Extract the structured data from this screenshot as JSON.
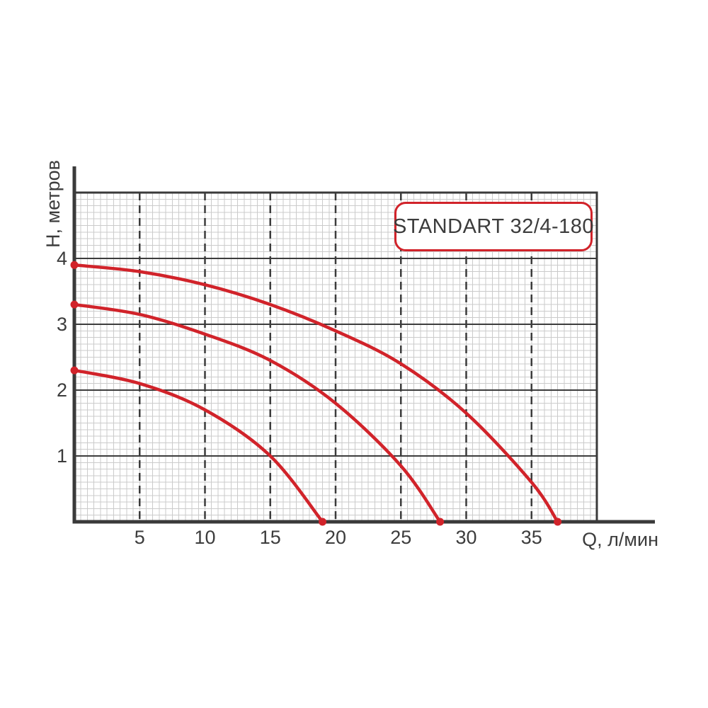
{
  "title_badge": "STANDART 32/4-180",
  "colors": {
    "curve_red": "#d1232a",
    "axis_dark": "#3a3a3a",
    "grid_major": "#3c3c3c",
    "grid_minor": "#cbcbcb",
    "badge_border": "#d1232a",
    "badge_background": "#ffffff",
    "text": "#3c3c3c",
    "background": "#ffffff"
  },
  "chart_data": {
    "type": "line",
    "title": "STANDART 32/4-180",
    "xlabel": "Q, л/мин",
    "ylabel": "H, метров",
    "xlim": [
      0,
      40
    ],
    "ylim": [
      0,
      5
    ],
    "x_ticks": [
      5,
      10,
      15,
      20,
      25,
      30,
      35
    ],
    "y_ticks": [
      1,
      2,
      3,
      4
    ],
    "x_minor_step": 0.5,
    "y_minor_step": 0.1,
    "grid": "minor grid on; major horizontal lines solid; major vertical lines dashed",
    "legend_position": "none",
    "series": [
      {
        "name": "curve-high",
        "shutoff_head_m": 3.9,
        "max_flow_l_min": 37,
        "points": [
          [
            0,
            3.9
          ],
          [
            5,
            3.8
          ],
          [
            10,
            3.6
          ],
          [
            15,
            3.3
          ],
          [
            20,
            2.9
          ],
          [
            25,
            2.4
          ],
          [
            30,
            1.65
          ],
          [
            35,
            0.6
          ],
          [
            37,
            0
          ]
        ],
        "endpoint_dots": true
      },
      {
        "name": "curve-mid",
        "shutoff_head_m": 3.3,
        "max_flow_l_min": 28,
        "points": [
          [
            0,
            3.3
          ],
          [
            5,
            3.15
          ],
          [
            10,
            2.85
          ],
          [
            15,
            2.45
          ],
          [
            20,
            1.8
          ],
          [
            25,
            0.85
          ],
          [
            28,
            0
          ]
        ],
        "endpoint_dots": true
      },
      {
        "name": "curve-low",
        "shutoff_head_m": 2.3,
        "max_flow_l_min": 19,
        "points": [
          [
            0,
            2.3
          ],
          [
            5,
            2.1
          ],
          [
            10,
            1.7
          ],
          [
            15,
            1.0
          ],
          [
            19,
            0
          ]
        ],
        "endpoint_dots": true
      }
    ]
  }
}
